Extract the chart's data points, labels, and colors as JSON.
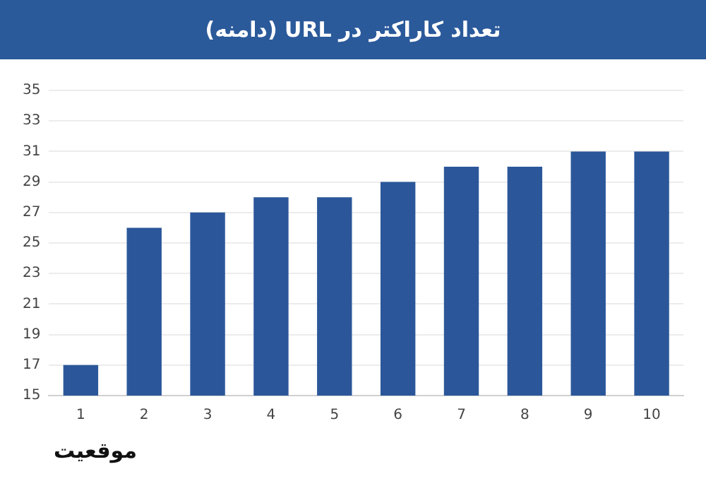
{
  "chart_data": {
    "type": "bar",
    "title": "تعداد کاراکتر در URL (دامنه)",
    "xlabel": "موقعیت",
    "categories": [
      "1",
      "2",
      "3",
      "4",
      "5",
      "6",
      "7",
      "8",
      "9",
      "10"
    ],
    "values": [
      17,
      26,
      27,
      28,
      28,
      29,
      30,
      30,
      31,
      31
    ],
    "color": "#2b579a",
    "ylim": [
      15,
      35
    ],
    "yticks": [
      15,
      17,
      19,
      21,
      23,
      25,
      27,
      29,
      31,
      33,
      35
    ],
    "grid": "y"
  }
}
